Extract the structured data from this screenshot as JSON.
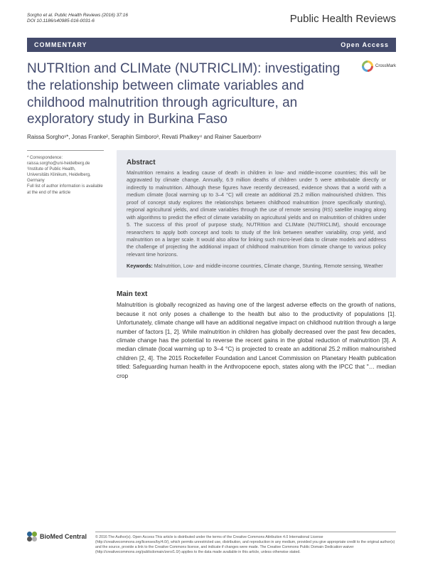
{
  "header": {
    "citation_line1": "Sorgho et al. Public Health Reviews  (2016) 37:16",
    "citation_line2": "DOI 10.1186/s40985-016-0031-6",
    "journal": "Public Health Reviews"
  },
  "banner": {
    "left": "COMMENTARY",
    "right": "Open Access"
  },
  "title": "NUTRItion and CLIMate (NUTRICLIM): investigating the relationship between climate variables and childhood malnutrition through agriculture, an exploratory study in Burkina Faso",
  "crossmark": "CrossMark",
  "authors": "Raissa Sorgho¹*, Jonas Franke², Seraphin Simboro³, Revati Phalkey⁴ and Rainer Sauerborn¹",
  "correspondence": {
    "label": "* Correspondence:",
    "email": "raissa.sorgho@uni-heidelberg.de",
    "affil1": "¹Institute of Public Health,",
    "affil2": "Universitäts Klinikum, Heidelberg,",
    "affil3": "Germany",
    "note": "Full list of author information is available at the end of the article"
  },
  "abstract": {
    "heading": "Abstract",
    "body": "Malnutrition remains a leading cause of death in children in low- and middle-income countries; this will be aggravated by climate change. Annually, 6.9 million deaths of children under 5 were attributable directly or indirectly to malnutrition. Although these figures have recently decreased, evidence shows that a world with a medium climate (local warming up to 3–4 °C) will create an additional 25.2 million malnourished children. This proof of concept study explores the relationships between childhood malnutrition (more specifically stunting), regional agricultural yields, and climate variables through the use of remote sensing (RS) satellite imaging along with algorithms to predict the effect of climate variability on agricultural yields and on malnutrition of children under 5. The success of this proof of purpose study, NUTRItion and CLIMate (NUTRICLIM), should encourage researchers to apply both concept and tools to study of the link between weather variability, crop yield, and malnutrition on a larger scale. It would also allow for linking such micro-level data to climate models and address the challenge of projecting the additional impact of childhood malnutrition from climate change to various policy relevant time horizons.",
    "keywords_label": "Keywords:",
    "keywords": " Malnutrition, Low- and middle-income countries, Climate change, Stunting, Remote sensing, Weather"
  },
  "main": {
    "heading": "Main text",
    "body": "Malnutrition is globally recognized as having one of the largest adverse effects on the growth of nations, because it not only poses a challenge to the health but also to the productivity of populations [1]. Unfortunately, climate change will have an additional negative impact on childhood nutrition through a large number of factors [1, 2]. While malnutrition in children has globally decreased over the past few decades, climate change has the potential to reverse the recent gains in the global reduction of malnutrition [3]. A median climate (local warming up to 3–4 °C) is projected to create an additional 25.2 million malnourished children [2, 4]. The 2015 Rockefeller Foundation and Lancet Commission on Planetary Health publication titled: Safeguarding human health in the Anthropocene epoch, states along with the IPCC that \"… median crop"
  },
  "footer": {
    "logo_text": "BioMed Central",
    "license": "© 2016 The Author(s). Open Access This article is distributed under the terms of the Creative Commons Attribution 4.0 International License (http://creativecommons.org/licenses/by/4.0/), which permits unrestricted use, distribution, and reproduction in any medium, provided you give appropriate credit to the original author(s) and the source, provide a link to the Creative Commons license, and indicate if changes were made. The Creative Commons Public Domain Dedication waiver (http://creativecommons.org/publicdomain/zero/1.0/) applies to the data made available in this article, unless otherwise stated."
  }
}
